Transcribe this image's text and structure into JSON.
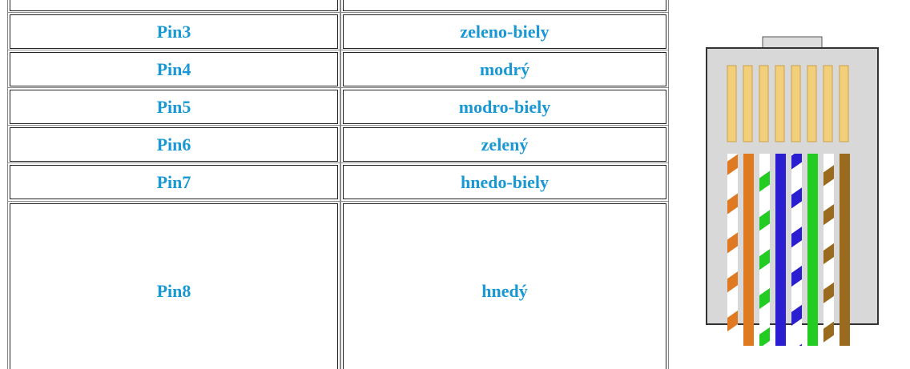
{
  "table": {
    "rows": [
      [
        "Pin3",
        "zeleno-biely"
      ],
      [
        "Pin4",
        "modrý"
      ],
      [
        "Pin5",
        "modro-biely"
      ],
      [
        "Pin6",
        "zelený"
      ],
      [
        "Pin7",
        "hnedo-biely"
      ],
      [
        "Pin8",
        "hnedý"
      ]
    ]
  }
}
